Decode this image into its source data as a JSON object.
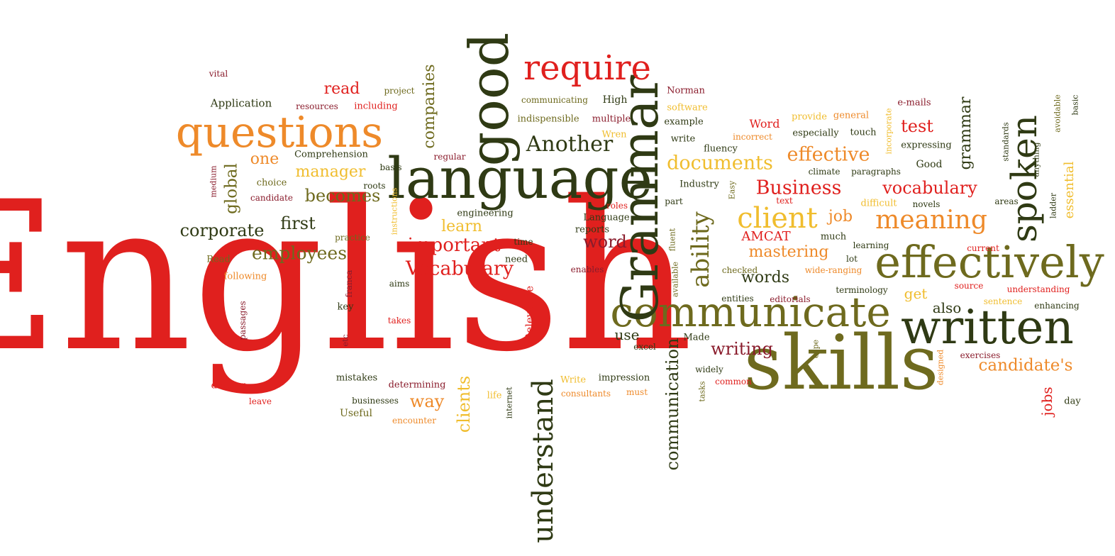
{
  "palette": {
    "red": "#e0201e",
    "dark_green": "#2f3a14",
    "olive": "#6e6a1e",
    "orange": "#ee8a2a",
    "yellow": "#f0bd2e",
    "maroon": "#8a1c2c"
  },
  "words": [
    {
      "text": "English",
      "color": "red"
    },
    {
      "text": "skills",
      "color": "olive"
    },
    {
      "text": "language",
      "color": "dark_green"
    },
    {
      "text": "communicate",
      "color": "olive"
    },
    {
      "text": "effectively",
      "color": "olive"
    },
    {
      "text": "written",
      "color": "dark_green"
    },
    {
      "text": "Grammar",
      "color": "dark_green"
    },
    {
      "text": "good",
      "color": "dark_green"
    },
    {
      "text": "questions",
      "color": "orange"
    },
    {
      "text": "require",
      "color": "red"
    },
    {
      "text": "understand",
      "color": "dark_green"
    },
    {
      "text": "spoken",
      "color": "dark_green"
    },
    {
      "text": "client",
      "color": "yellow"
    },
    {
      "text": "meaning",
      "color": "orange"
    },
    {
      "text": "ability",
      "color": "olive"
    },
    {
      "text": "Vocabulary",
      "color": "red"
    },
    {
      "text": "important",
      "color": "red"
    },
    {
      "text": "Business",
      "color": "red"
    },
    {
      "text": "documents",
      "color": "yellow"
    },
    {
      "text": "effective",
      "color": "orange"
    },
    {
      "text": "vocabulary",
      "color": "red"
    },
    {
      "text": "employees",
      "color": "olive"
    },
    {
      "text": "corporate",
      "color": "dark_green"
    },
    {
      "text": "communication",
      "color": "dark_green"
    },
    {
      "text": "candidate's",
      "color": "orange"
    },
    {
      "text": "writing",
      "color": "maroon"
    },
    {
      "text": "mastering",
      "color": "orange"
    },
    {
      "text": "words",
      "color": "dark_green"
    },
    {
      "text": "Another",
      "color": "dark_green"
    },
    {
      "text": "becomes",
      "color": "olive"
    },
    {
      "text": "manager",
      "color": "yellow"
    },
    {
      "text": "first",
      "color": "dark_green"
    },
    {
      "text": "companies",
      "color": "olive"
    },
    {
      "text": "clients",
      "color": "yellow"
    },
    {
      "text": "global",
      "color": "olive"
    },
    {
      "text": "read",
      "color": "red"
    },
    {
      "text": "one",
      "color": "orange"
    },
    {
      "text": "learn",
      "color": "yellow"
    },
    {
      "text": "way",
      "color": "orange"
    },
    {
      "text": "word",
      "color": "maroon"
    },
    {
      "text": "use",
      "color": "dark_green"
    },
    {
      "text": "job",
      "color": "orange"
    },
    {
      "text": "test",
      "color": "red"
    },
    {
      "text": "get",
      "color": "yellow"
    },
    {
      "text": "also",
      "color": "dark_green"
    },
    {
      "text": "jobs",
      "color": "red"
    },
    {
      "text": "grammar",
      "color": "dark_green"
    },
    {
      "text": "essential",
      "color": "yellow"
    },
    {
      "text": "AMCAT",
      "color": "red"
    },
    {
      "text": "vital",
      "color": "maroon"
    },
    {
      "text": "Application",
      "color": "dark_green"
    },
    {
      "text": "resources",
      "color": "maroon"
    },
    {
      "text": "including",
      "color": "red"
    },
    {
      "text": "project",
      "color": "olive"
    },
    {
      "text": "communicating",
      "color": "olive"
    },
    {
      "text": "High",
      "color": "dark_green"
    },
    {
      "text": "indispensible",
      "color": "olive"
    },
    {
      "text": "multiple",
      "color": "maroon"
    },
    {
      "text": "Wren",
      "color": "yellow"
    },
    {
      "text": "Norman",
      "color": "maroon"
    },
    {
      "text": "software",
      "color": "yellow"
    },
    {
      "text": "example",
      "color": "dark_green"
    },
    {
      "text": "write",
      "color": "dark_green"
    },
    {
      "text": "fluency",
      "color": "dark_green"
    },
    {
      "text": "Word",
      "color": "red"
    },
    {
      "text": "incorrect",
      "color": "orange"
    },
    {
      "text": "provide",
      "color": "yellow"
    },
    {
      "text": "general",
      "color": "orange"
    },
    {
      "text": "especially",
      "color": "dark_green"
    },
    {
      "text": "touch",
      "color": "dark_green"
    },
    {
      "text": "incorporate",
      "color": "yellow"
    },
    {
      "text": "e-mails",
      "color": "maroon"
    },
    {
      "text": "expressing",
      "color": "dark_green"
    },
    {
      "text": "Good",
      "color": "dark_green"
    },
    {
      "text": "Comprehension",
      "color": "dark_green"
    },
    {
      "text": "basis",
      "color": "dark_green"
    },
    {
      "text": "regular",
      "color": "maroon"
    },
    {
      "text": "choice",
      "color": "olive"
    },
    {
      "text": "medium",
      "color": "maroon"
    },
    {
      "text": "roots",
      "color": "dark_green"
    },
    {
      "text": "candidate",
      "color": "maroon"
    },
    {
      "text": "instructions",
      "color": "yellow"
    },
    {
      "text": "practice",
      "color": "olive"
    },
    {
      "text": "engineering",
      "color": "dark_green"
    },
    {
      "text": "Read",
      "color": "olive"
    },
    {
      "text": "following",
      "color": "orange"
    },
    {
      "text": "aims",
      "color": "dark_green"
    },
    {
      "text": "franca",
      "color": "maroon"
    },
    {
      "text": "key",
      "color": "dark_green"
    },
    {
      "text": "passages",
      "color": "maroon"
    },
    {
      "text": "takes",
      "color": "red"
    },
    {
      "text": "etc",
      "color": "maroon"
    },
    {
      "text": "Relevance",
      "color": "red"
    },
    {
      "text": "time",
      "color": "dark_green"
    },
    {
      "text": "need",
      "color": "dark_green"
    },
    {
      "text": "enables",
      "color": "maroon"
    },
    {
      "text": "roles",
      "color": "red"
    },
    {
      "text": "Language",
      "color": "dark_green"
    },
    {
      "text": "reports",
      "color": "dark_green"
    },
    {
      "text": "Industry",
      "color": "dark_green"
    },
    {
      "text": "part",
      "color": "dark_green"
    },
    {
      "text": "fluent",
      "color": "olive"
    },
    {
      "text": "available",
      "color": "olive"
    },
    {
      "text": "Easy",
      "color": "olive"
    },
    {
      "text": "climate",
      "color": "dark_green"
    },
    {
      "text": "paragraphs",
      "color": "dark_green"
    },
    {
      "text": "text",
      "color": "red"
    },
    {
      "text": "difficult",
      "color": "yellow"
    },
    {
      "text": "novels",
      "color": "dark_green"
    },
    {
      "text": "areas",
      "color": "dark_green"
    },
    {
      "text": "standards",
      "color": "dark_green"
    },
    {
      "text": "anything",
      "color": "dark_green"
    },
    {
      "text": "ladder",
      "color": "dark_green"
    },
    {
      "text": "avoidable",
      "color": "olive"
    },
    {
      "text": "basic",
      "color": "dark_green"
    },
    {
      "text": "much",
      "color": "dark_green"
    },
    {
      "text": "learning",
      "color": "dark_green"
    },
    {
      "text": "current",
      "color": "red"
    },
    {
      "text": "lot",
      "color": "dark_green"
    },
    {
      "text": "checked",
      "color": "olive"
    },
    {
      "text": "wide-ranging",
      "color": "orange"
    },
    {
      "text": "entities",
      "color": "dark_green"
    },
    {
      "text": "editorials",
      "color": "maroon"
    },
    {
      "text": "terminology",
      "color": "dark_green"
    },
    {
      "text": "source",
      "color": "red"
    },
    {
      "text": "understanding",
      "color": "red"
    },
    {
      "text": "sentence",
      "color": "yellow"
    },
    {
      "text": "enhancing",
      "color": "dark_green"
    },
    {
      "text": "excel",
      "color": "dark_green"
    },
    {
      "text": "Made",
      "color": "dark_green"
    },
    {
      "text": "widely",
      "color": "dark_green"
    },
    {
      "text": "common",
      "color": "red"
    },
    {
      "text": "tasks",
      "color": "olive"
    },
    {
      "text": "cope",
      "color": "olive"
    },
    {
      "text": "designed",
      "color": "orange"
    },
    {
      "text": "exercises",
      "color": "maroon"
    },
    {
      "text": "day",
      "color": "dark_green"
    },
    {
      "text": "Write",
      "color": "yellow"
    },
    {
      "text": "impression",
      "color": "dark_green"
    },
    {
      "text": "consultants",
      "color": "orange"
    },
    {
      "text": "must",
      "color": "orange"
    },
    {
      "text": "life",
      "color": "yellow"
    },
    {
      "text": "internet",
      "color": "dark_green"
    },
    {
      "text": "dealing",
      "color": "red"
    },
    {
      "text": "leave",
      "color": "red"
    },
    {
      "text": "mistakes",
      "color": "dark_green"
    },
    {
      "text": "determining",
      "color": "maroon"
    },
    {
      "text": "businesses",
      "color": "dark_green"
    },
    {
      "text": "Useful",
      "color": "olive"
    },
    {
      "text": "encounter",
      "color": "orange"
    }
  ]
}
